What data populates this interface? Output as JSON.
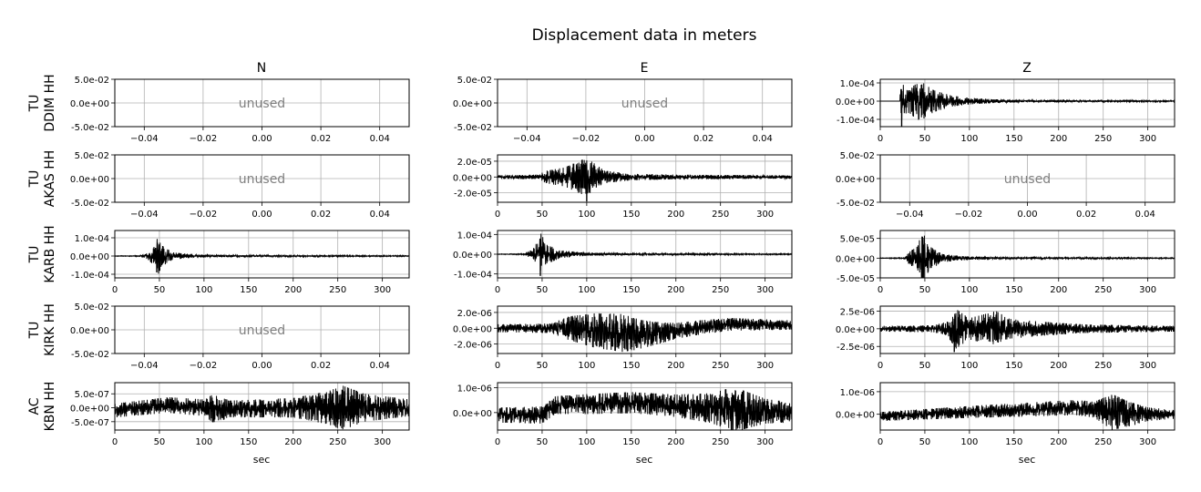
{
  "figure": {
    "title": "Displacement data in meters",
    "column_titles": [
      "N",
      "E",
      "Z"
    ],
    "row_labels": [
      [
        "TU",
        "DDIM HH"
      ],
      [
        "TU",
        "AKAS HH"
      ],
      [
        "TU",
        "KARB HH"
      ],
      [
        "TU",
        "KIRK HH"
      ],
      [
        "AC",
        "KBN HH"
      ]
    ],
    "xlabel": "sec",
    "unused_text": "unused"
  },
  "colors": {
    "trace": "#000000",
    "grid": "#b0b0b0",
    "unused": "#808080"
  },
  "chart_data": [
    {
      "type": "empty",
      "row": 0,
      "col": 0,
      "station": "TU DDIM HH",
      "component": "N",
      "text": "unused",
      "xlim": [
        -0.05,
        0.05
      ],
      "ylim": [
        -0.05,
        0.05
      ],
      "xticks": [
        -0.04,
        -0.02,
        0,
        0.02,
        0.04
      ],
      "xtick_labels": [
        "−0.04",
        "−0.02",
        "0.00",
        "0.02",
        "0.04"
      ],
      "yticks": [
        0.05,
        0,
        -0.05
      ],
      "ytick_labels": [
        "5.0e-02",
        "0.0e+00",
        "-5.0e-02"
      ],
      "grid": true
    },
    {
      "type": "empty",
      "row": 0,
      "col": 1,
      "station": "TU DDIM HH",
      "component": "E",
      "text": "unused",
      "xlim": [
        -0.05,
        0.05
      ],
      "ylim": [
        -0.05,
        0.05
      ],
      "xticks": [
        -0.04,
        -0.02,
        0,
        0.02,
        0.04
      ],
      "xtick_labels": [
        "−0.04",
        "−0.02",
        "0.00",
        "0.02",
        "0.04"
      ],
      "yticks": [
        0.05,
        0,
        -0.05
      ],
      "ytick_labels": [
        "5.0e-02",
        "0.0e+00",
        "-5.0e-02"
      ],
      "grid": true
    },
    {
      "type": "line",
      "row": 0,
      "col": 2,
      "station": "TU DDIM HH",
      "component": "Z",
      "xlim": [
        0,
        330
      ],
      "ylim": [
        -0.00014,
        0.00012
      ],
      "xticks": [
        0,
        50,
        100,
        150,
        200,
        250,
        300
      ],
      "xtick_labels": [
        "0",
        "50",
        "100",
        "150",
        "200",
        "250",
        "300"
      ],
      "yticks": [
        0.0001,
        0,
        -0.0001
      ],
      "ytick_labels": [
        "1.0e-04",
        "0.0e+00",
        "-1.0e-04"
      ],
      "grid": true,
      "envelope": [
        [
          0,
          0
        ],
        [
          22,
          0
        ],
        [
          23,
          0.00011
        ],
        [
          30,
          6e-05
        ],
        [
          45,
          0.00011
        ],
        [
          60,
          6e-05
        ],
        [
          80,
          3e-05
        ],
        [
          100,
          1.8e-05
        ],
        [
          130,
          1e-05
        ],
        [
          160,
          6e-06
        ],
        [
          200,
          4e-06
        ],
        [
          330,
          3e-06
        ]
      ],
      "spikes": [
        [
          24,
          -0.00014
        ]
      ]
    },
    {
      "type": "empty",
      "row": 1,
      "col": 0,
      "station": "TU AKAS HH",
      "component": "N",
      "text": "unused",
      "xlim": [
        -0.05,
        0.05
      ],
      "ylim": [
        -0.05,
        0.05
      ],
      "xticks": [
        -0.04,
        -0.02,
        0,
        0.02,
        0.04
      ],
      "xtick_labels": [
        "−0.04",
        "−0.02",
        "0.00",
        "0.02",
        "0.04"
      ],
      "yticks": [
        0.05,
        0,
        -0.05
      ],
      "ytick_labels": [
        "5.0e-02",
        "0.0e+00",
        "-5.0e-02"
      ],
      "grid": true
    },
    {
      "type": "line",
      "row": 1,
      "col": 1,
      "station": "TU AKAS HH",
      "component": "E",
      "xlim": [
        0,
        330
      ],
      "ylim": [
        -3.2e-05,
        2.8e-05
      ],
      "xticks": [
        0,
        50,
        100,
        150,
        200,
        250,
        300
      ],
      "xtick_labels": [
        "0",
        "50",
        "100",
        "150",
        "200",
        "250",
        "300"
      ],
      "yticks": [
        2e-05,
        0,
        -2e-05
      ],
      "ytick_labels": [
        "2.0e-05",
        "0.0e+00",
        "-2.0e-05"
      ],
      "grid": true,
      "envelope": [
        [
          0,
          2e-06
        ],
        [
          45,
          3e-06
        ],
        [
          55,
          8e-06
        ],
        [
          75,
          1.2e-05
        ],
        [
          95,
          2.2e-05
        ],
        [
          105,
          2e-05
        ],
        [
          120,
          8e-06
        ],
        [
          150,
          4e-06
        ],
        [
          200,
          3e-06
        ],
        [
          330,
          2e-06
        ]
      ],
      "spikes": [
        [
          100,
          -3.1e-05
        ]
      ]
    },
    {
      "type": "empty",
      "row": 1,
      "col": 2,
      "station": "TU AKAS HH",
      "component": "Z",
      "text": "unused",
      "xlim": [
        -0.05,
        0.05
      ],
      "ylim": [
        -0.05,
        0.05
      ],
      "xticks": [
        -0.04,
        -0.02,
        0,
        0.02,
        0.04
      ],
      "xtick_labels": [
        "−0.04",
        "−0.02",
        "0.00",
        "0.02",
        "0.04"
      ],
      "yticks": [
        0.05,
        0,
        -0.05
      ],
      "ytick_labels": [
        "5.0e-02",
        "0.0e+00",
        "-5.0e-02"
      ],
      "grid": true
    },
    {
      "type": "line",
      "row": 2,
      "col": 0,
      "station": "TU KARB HH",
      "component": "N",
      "xlim": [
        0,
        330
      ],
      "ylim": [
        -0.00012,
        0.00014
      ],
      "xticks": [
        0,
        50,
        100,
        150,
        200,
        250,
        300
      ],
      "xtick_labels": [
        "0",
        "50",
        "100",
        "150",
        "200",
        "250",
        "300"
      ],
      "yticks": [
        0.0001,
        0,
        -0.0001
      ],
      "ytick_labels": [
        "1.0e-04",
        "0.0e+00",
        "-1.0e-04"
      ],
      "grid": true,
      "envelope": [
        [
          0,
          1e-06
        ],
        [
          28,
          2e-06
        ],
        [
          35,
          1.2e-05
        ],
        [
          44,
          5e-05
        ],
        [
          47,
          0.00013
        ],
        [
          52,
          6e-05
        ],
        [
          65,
          2e-05
        ],
        [
          90,
          8e-06
        ],
        [
          140,
          4e-06
        ],
        [
          330,
          2e-06
        ]
      ],
      "spikes": [
        [
          47,
          -9e-05
        ]
      ]
    },
    {
      "type": "line",
      "row": 2,
      "col": 1,
      "station": "TU KARB HH",
      "component": "E",
      "xlim": [
        0,
        330
      ],
      "ylim": [
        -0.00012,
        0.00012
      ],
      "xticks": [
        0,
        50,
        100,
        150,
        200,
        250,
        300
      ],
      "xtick_labels": [
        "0",
        "50",
        "100",
        "150",
        "200",
        "250",
        "300"
      ],
      "yticks": [
        0.0001,
        0,
        -0.0001
      ],
      "ytick_labels": [
        "1.0e-04",
        "0.0e+00",
        "-1.0e-04"
      ],
      "grid": true,
      "envelope": [
        [
          0,
          1e-06
        ],
        [
          28,
          2e-06
        ],
        [
          35,
          1.5e-05
        ],
        [
          45,
          6e-05
        ],
        [
          48,
          0.00011
        ],
        [
          55,
          5e-05
        ],
        [
          70,
          2e-05
        ],
        [
          100,
          8e-06
        ],
        [
          150,
          4e-06
        ],
        [
          330,
          2e-06
        ]
      ],
      "spikes": [
        [
          48,
          -0.00011
        ]
      ]
    },
    {
      "type": "line",
      "row": 2,
      "col": 2,
      "station": "TU KARB HH",
      "component": "Z",
      "xlim": [
        0,
        330
      ],
      "ylim": [
        -5e-05,
        7e-05
      ],
      "xticks": [
        0,
        50,
        100,
        150,
        200,
        250,
        300
      ],
      "xtick_labels": [
        "0",
        "50",
        "100",
        "150",
        "200",
        "250",
        "300"
      ],
      "yticks": [
        5e-05,
        0,
        -5e-05
      ],
      "ytick_labels": [
        "5.0e-05",
        "0.0e+00",
        "-5.0e-05"
      ],
      "grid": true,
      "envelope": [
        [
          0,
          5e-07
        ],
        [
          27,
          1e-06
        ],
        [
          32,
          1.5e-05
        ],
        [
          42,
          3e-05
        ],
        [
          47,
          7e-05
        ],
        [
          55,
          3e-05
        ],
        [
          70,
          1e-05
        ],
        [
          100,
          4e-06
        ],
        [
          150,
          2e-06
        ],
        [
          330,
          1e-06
        ]
      ],
      "spikes": [
        [
          47,
          -4.5e-05
        ]
      ]
    },
    {
      "type": "empty",
      "row": 3,
      "col": 0,
      "station": "TU KIRK HH",
      "component": "N",
      "text": "unused",
      "xlim": [
        -0.05,
        0.05
      ],
      "ylim": [
        -0.05,
        0.05
      ],
      "xticks": [
        -0.04,
        -0.02,
        0,
        0.02,
        0.04
      ],
      "xtick_labels": [
        "−0.04",
        "−0.02",
        "0.00",
        "0.02",
        "0.04"
      ],
      "yticks": [
        0.05,
        0,
        -0.05
      ],
      "ytick_labels": [
        "5.0e-02",
        "0.0e+00",
        "-5.0e-02"
      ],
      "grid": true
    },
    {
      "type": "line",
      "row": 3,
      "col": 1,
      "station": "TU KIRK HH",
      "component": "E",
      "xlim": [
        0,
        330
      ],
      "ylim": [
        -3.2e-06,
        2.8e-06
      ],
      "xticks": [
        0,
        50,
        100,
        150,
        200,
        250,
        300
      ],
      "xtick_labels": [
        "0",
        "50",
        "100",
        "150",
        "200",
        "250",
        "300"
      ],
      "yticks": [
        2e-06,
        0,
        -2e-06
      ],
      "ytick_labels": [
        "2.0e-06",
        "0.0e+00",
        "-2.0e-06"
      ],
      "grid": true,
      "envelope": [
        [
          0,
          5e-07
        ],
        [
          60,
          6e-07
        ],
        [
          80,
          1.5e-06
        ],
        [
          110,
          2.2e-06
        ],
        [
          140,
          2.4e-06
        ],
        [
          170,
          1.6e-06
        ],
        [
          200,
          1e-06
        ],
        [
          260,
          8e-07
        ],
        [
          330,
          6e-07
        ]
      ],
      "trend": [
        [
          0,
          0
        ],
        [
          80,
          0
        ],
        [
          110,
          -3e-07
        ],
        [
          160,
          -8e-07
        ],
        [
          190,
          -5e-07
        ],
        [
          220,
          0
        ],
        [
          260,
          5e-07
        ],
        [
          330,
          4e-07
        ]
      ]
    },
    {
      "type": "line",
      "row": 3,
      "col": 2,
      "station": "TU KIRK HH",
      "component": "Z",
      "xlim": [
        0,
        330
      ],
      "ylim": [
        -3.5e-06,
        3.2e-06
      ],
      "xticks": [
        0,
        50,
        100,
        150,
        200,
        250,
        300
      ],
      "xtick_labels": [
        "0",
        "50",
        "100",
        "150",
        "200",
        "250",
        "300"
      ],
      "yticks": [
        2.5e-06,
        0,
        -2.5e-06
      ],
      "ytick_labels": [
        "2.5e-06",
        "0.0e+00",
        "-2.5e-06"
      ],
      "grid": true,
      "envelope": [
        [
          0,
          4e-07
        ],
        [
          60,
          5e-07
        ],
        [
          75,
          1e-06
        ],
        [
          85,
          2.8e-06
        ],
        [
          100,
          1.5e-06
        ],
        [
          130,
          2.5e-06
        ],
        [
          145,
          1.4e-06
        ],
        [
          180,
          1e-06
        ],
        [
          230,
          6e-07
        ],
        [
          330,
          4e-07
        ]
      ],
      "spikes": [
        [
          83,
          -3.3e-06
        ]
      ]
    },
    {
      "type": "line",
      "row": 4,
      "col": 0,
      "station": "AC KBN HH",
      "component": "N",
      "xlim": [
        0,
        330
      ],
      "ylim": [
        -8e-07,
        9e-07
      ],
      "xticks": [
        0,
        50,
        100,
        150,
        200,
        250,
        300
      ],
      "xtick_labels": [
        "0",
        "50",
        "100",
        "150",
        "200",
        "250",
        "300"
      ],
      "yticks": [
        5e-07,
        0,
        -5e-07
      ],
      "ytick_labels": [
        "5.0e-07",
        "0.0e+00",
        "-5.0e-07"
      ],
      "grid": true,
      "envelope": [
        [
          0,
          2.5e-07
        ],
        [
          100,
          3e-07
        ],
        [
          110,
          5e-07
        ],
        [
          130,
          3e-07
        ],
        [
          200,
          3.5e-07
        ],
        [
          240,
          6e-07
        ],
        [
          255,
          8e-07
        ],
        [
          280,
          5e-07
        ],
        [
          330,
          3e-07
        ]
      ],
      "trend": [
        [
          0,
          -1e-07
        ],
        [
          60,
          1e-07
        ],
        [
          120,
          -5e-08
        ],
        [
          200,
          0
        ],
        [
          330,
          0
        ]
      ]
    },
    {
      "type": "line",
      "row": 4,
      "col": 1,
      "station": "AC KBN HH",
      "component": "E",
      "xlim": [
        0,
        330
      ],
      "ylim": [
        -7e-07,
        1.2e-06
      ],
      "xticks": [
        0,
        50,
        100,
        150,
        200,
        250,
        300
      ],
      "xtick_labels": [
        "0",
        "50",
        "100",
        "150",
        "200",
        "250",
        "300"
      ],
      "yticks": [
        1e-06,
        0
      ],
      "ytick_labels": [
        "1.0e-06",
        "0.0e+00"
      ],
      "grid": true,
      "envelope": [
        [
          0,
          3e-07
        ],
        [
          60,
          3.5e-07
        ],
        [
          100,
          4e-07
        ],
        [
          200,
          4.5e-07
        ],
        [
          240,
          6e-07
        ],
        [
          265,
          9e-07
        ],
        [
          300,
          5e-07
        ],
        [
          330,
          4e-07
        ]
      ],
      "trend": [
        [
          0,
          -1e-07
        ],
        [
          50,
          -1e-07
        ],
        [
          65,
          3e-07
        ],
        [
          150,
          4e-07
        ],
        [
          230,
          2e-07
        ],
        [
          330,
          0
        ]
      ]
    },
    {
      "type": "line",
      "row": 4,
      "col": 2,
      "station": "AC KBN HH",
      "component": "Z",
      "xlim": [
        0,
        330
      ],
      "ylim": [
        -7e-07,
        1.4e-06
      ],
      "xticks": [
        0,
        50,
        100,
        150,
        200,
        250,
        300
      ],
      "xtick_labels": [
        "0",
        "50",
        "100",
        "150",
        "200",
        "250",
        "300"
      ],
      "yticks": [
        1e-06,
        0
      ],
      "ytick_labels": [
        "1.0e-06",
        "0.0e+00"
      ],
      "grid": true,
      "envelope": [
        [
          0,
          2e-07
        ],
        [
          80,
          2.5e-07
        ],
        [
          150,
          3e-07
        ],
        [
          240,
          3.5e-07
        ],
        [
          260,
          8e-07
        ],
        [
          275,
          6e-07
        ],
        [
          300,
          3e-07
        ],
        [
          330,
          2e-07
        ]
      ],
      "trend": [
        [
          0,
          -1e-07
        ],
        [
          100,
          1e-07
        ],
        [
          220,
          3e-07
        ],
        [
          280,
          0
        ],
        [
          330,
          0
        ]
      ]
    }
  ]
}
